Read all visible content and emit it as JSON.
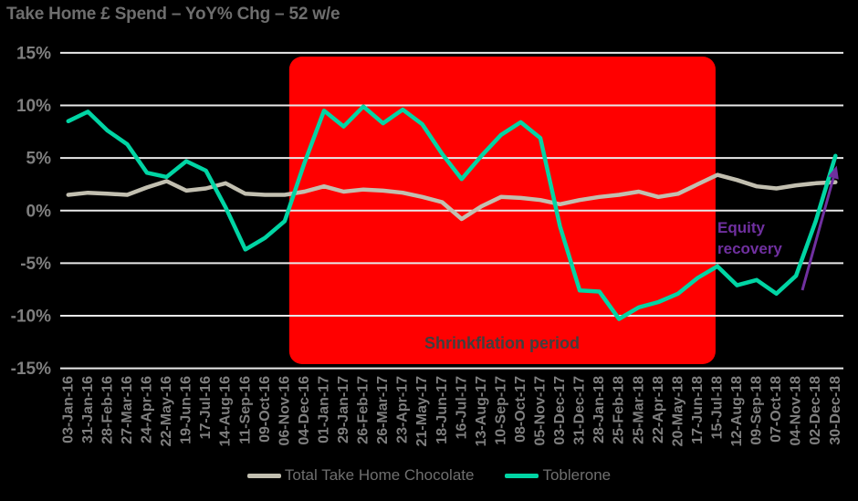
{
  "title": "Take Home £ Spend – YoY% Chg – 52 w/e",
  "colors": {
    "background": "#000000",
    "gridline": "#E9E9E9",
    "axis_text": "#7F7F7F",
    "title_text": "#6E6E6E",
    "legend_text": "#6F6F6F",
    "shaded_region": "#FF0000",
    "shaded_label": "#3F3F3F",
    "annotation_purple": "#7030A0",
    "series_total": "#C2BFB0",
    "series_toblerone": "#00D5A4"
  },
  "chart_data": {
    "type": "line",
    "title": "Take Home £ Spend – YoY% Chg – 52 w/e",
    "grid": true,
    "legend_position": "bottom",
    "ylim": [
      -15,
      15
    ],
    "y_ticks": [
      "15%",
      "10%",
      "5%",
      "0%",
      "-5%",
      "-10%",
      "-15%"
    ],
    "x_labels": [
      "03-Jan-16",
      "31-Jan-16",
      "28-Feb-16",
      "27-Mar-16",
      "24-Apr-16",
      "22-May-16",
      "19-Jun-16",
      "17-Jul-16",
      "14-Aug-16",
      "11-Sep-16",
      "09-Oct-16",
      "06-Nov-16",
      "04-Dec-16",
      "01-Jan-17",
      "29-Jan-17",
      "26-Feb-17",
      "26-Mar-17",
      "23-Apr-17",
      "21-May-17",
      "18-Jun-17",
      "16-Jul-17",
      "13-Aug-17",
      "10-Sep-17",
      "08-Oct-17",
      "05-Nov-17",
      "03-Dec-17",
      "31-Dec-17",
      "28-Jan-18",
      "25-Feb-18",
      "25-Mar-18",
      "22-Apr-18",
      "20-May-18",
      "17-Jun-18",
      "15-Jul-18",
      "12-Aug-18",
      "09-Sep-18",
      "07-Oct-18",
      "04-Nov-18",
      "02-Dec-18",
      "30-Dec-18"
    ],
    "series": [
      {
        "name": "Total Take Home Chocolate",
        "color": "#C2BFB0",
        "values": [
          1.5,
          1.7,
          1.6,
          1.5,
          2.2,
          2.8,
          1.9,
          2.1,
          2.6,
          1.6,
          1.5,
          1.5,
          1.8,
          2.3,
          1.8,
          2.0,
          1.9,
          1.7,
          1.3,
          0.8,
          -0.8,
          0.4,
          1.3,
          1.2,
          1.0,
          0.6,
          1.0,
          1.3,
          1.5,
          1.8,
          1.3,
          1.6,
          2.5,
          3.4,
          2.9,
          2.3,
          2.1,
          2.4,
          2.6,
          2.7
        ]
      },
      {
        "name": "Toblerone",
        "color": "#00D5A4",
        "values": [
          8.5,
          9.4,
          7.6,
          6.3,
          3.6,
          3.2,
          4.7,
          3.8,
          0.3,
          -3.7,
          -2.6,
          -1.0,
          4.5,
          9.5,
          8.0,
          9.9,
          8.3,
          9.6,
          8.2,
          5.4,
          3.0,
          5.2,
          7.2,
          8.4,
          6.9,
          -1.5,
          -7.6,
          -7.7,
          -10.3,
          -9.2,
          -8.7,
          -7.9,
          -6.4,
          -5.3,
          -7.1,
          -6.6,
          -7.9,
          -6.2,
          -1.0,
          5.2
        ]
      }
    ],
    "shaded_region": {
      "label": "Shrinkflation period",
      "from_label": "06-Nov-16",
      "to_label": "15-Jul-18",
      "color": "#FF0000"
    },
    "annotation": {
      "text": "Equity recovery",
      "color": "#7030A0"
    }
  }
}
